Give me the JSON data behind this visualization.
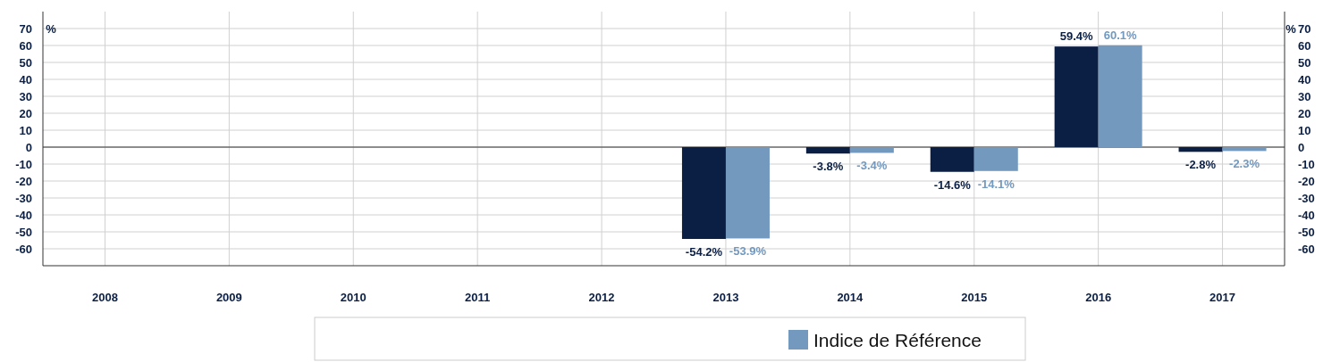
{
  "chart_data": {
    "type": "bar",
    "categories": [
      "2008",
      "2009",
      "2010",
      "2011",
      "2012",
      "2013",
      "2014",
      "2015",
      "2016",
      "2017"
    ],
    "series": [
      {
        "color": "#0b1f45",
        "values": [
          null,
          null,
          null,
          null,
          null,
          -54.2,
          -3.8,
          -14.6,
          59.4,
          -2.8
        ],
        "value_labels": [
          null,
          null,
          null,
          null,
          null,
          "-54.2%",
          "-3.8%",
          "-14.6%",
          "59.4%",
          "-2.8%"
        ]
      },
      {
        "name": "Indice de Référence",
        "color": "#7399bf",
        "values": [
          null,
          null,
          null,
          null,
          null,
          -53.9,
          -3.4,
          -14.1,
          60.1,
          -2.3
        ],
        "value_labels": [
          null,
          null,
          null,
          null,
          null,
          "-53.9%",
          "-3.4%",
          "-14.1%",
          "60.1%",
          "-2.3%"
        ]
      }
    ],
    "ylabel": "%",
    "y2label": "%",
    "ylim": [
      -70,
      80
    ],
    "yticks": [
      -60,
      -50,
      -40,
      -30,
      -20,
      -10,
      0,
      10,
      20,
      30,
      40,
      50,
      60,
      70
    ],
    "y2lim": [
      -70,
      80
    ],
    "y2ticks": [
      -60,
      -50,
      -40,
      -30,
      -20,
      -10,
      0,
      10,
      20,
      30,
      40,
      50,
      60,
      70
    ],
    "grid": true,
    "legend": "bottom"
  }
}
